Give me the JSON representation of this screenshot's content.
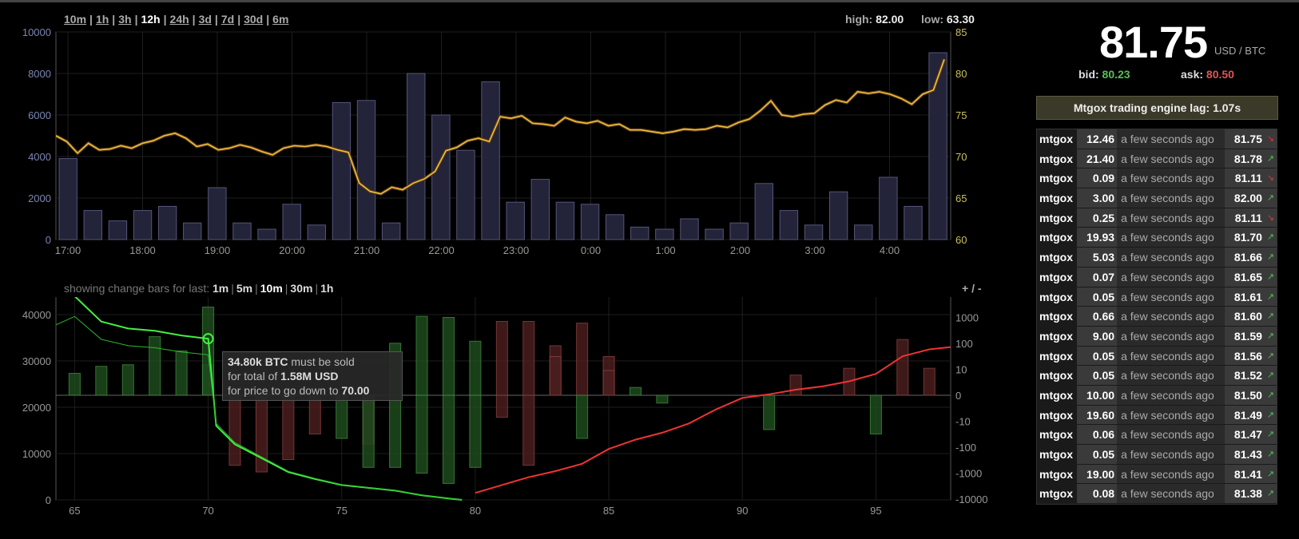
{
  "time_ranges": [
    {
      "label": "10m",
      "active": false
    },
    {
      "label": "1h",
      "active": false
    },
    {
      "label": "3h",
      "active": false
    },
    {
      "label": "12h",
      "active": true
    },
    {
      "label": "24h",
      "active": false
    },
    {
      "label": "3d",
      "active": false
    },
    {
      "label": "7d",
      "active": false
    },
    {
      "label": "30d",
      "active": false
    },
    {
      "label": "6m",
      "active": false
    }
  ],
  "high_label": "high:",
  "high_value": "82.00",
  "low_label": "low:",
  "low_value": "63.30",
  "change_bars": {
    "prefix": "showing change bars for last:",
    "options": [
      {
        "label": "1m",
        "active": false
      },
      {
        "label": "5m",
        "active": false
      },
      {
        "label": "10m",
        "active": true
      },
      {
        "label": "30m",
        "active": false
      },
      {
        "label": "1h",
        "active": false
      }
    ]
  },
  "zoom_label": "+ / -",
  "ticker": {
    "price": "81.75",
    "unit": "USD / BTC",
    "bid_label": "bid:",
    "bid": "80.23",
    "ask_label": "ask:",
    "ask": "80.50"
  },
  "lag_text": "Mtgox trading engine lag: 1.07s",
  "trades": [
    {
      "ex": "mtgox",
      "amount": "12.46",
      "time": "a few seconds ago",
      "price": "81.75",
      "dir": "down"
    },
    {
      "ex": "mtgox",
      "amount": "21.40",
      "time": "a few seconds ago",
      "price": "81.78",
      "dir": "up"
    },
    {
      "ex": "mtgox",
      "amount": "0.09",
      "time": "a few seconds ago",
      "price": "81.11",
      "dir": "down"
    },
    {
      "ex": "mtgox",
      "amount": "3.00",
      "time": "a few seconds ago",
      "price": "82.00",
      "dir": "up"
    },
    {
      "ex": "mtgox",
      "amount": "0.25",
      "time": "a few seconds ago",
      "price": "81.11",
      "dir": "down"
    },
    {
      "ex": "mtgox",
      "amount": "19.93",
      "time": "a few seconds ago",
      "price": "81.70",
      "dir": "up"
    },
    {
      "ex": "mtgox",
      "amount": "5.03",
      "time": "a few seconds ago",
      "price": "81.66",
      "dir": "up"
    },
    {
      "ex": "mtgox",
      "amount": "0.07",
      "time": "a few seconds ago",
      "price": "81.65",
      "dir": "up"
    },
    {
      "ex": "mtgox",
      "amount": "0.05",
      "time": "a few seconds ago",
      "price": "81.61",
      "dir": "up"
    },
    {
      "ex": "mtgox",
      "amount": "0.66",
      "time": "a few seconds ago",
      "price": "81.60",
      "dir": "up"
    },
    {
      "ex": "mtgox",
      "amount": "9.00",
      "time": "a few seconds ago",
      "price": "81.59",
      "dir": "up"
    },
    {
      "ex": "mtgox",
      "amount": "0.05",
      "time": "a few seconds ago",
      "price": "81.56",
      "dir": "up"
    },
    {
      "ex": "mtgox",
      "amount": "0.05",
      "time": "a few seconds ago",
      "price": "81.52",
      "dir": "up"
    },
    {
      "ex": "mtgox",
      "amount": "10.00",
      "time": "a few seconds ago",
      "price": "81.50",
      "dir": "up"
    },
    {
      "ex": "mtgox",
      "amount": "19.60",
      "time": "a few seconds ago",
      "price": "81.49",
      "dir": "up"
    },
    {
      "ex": "mtgox",
      "amount": "0.06",
      "time": "a few seconds ago",
      "price": "81.47",
      "dir": "up"
    },
    {
      "ex": "mtgox",
      "amount": "0.05",
      "time": "a few seconds ago",
      "price": "81.43",
      "dir": "up"
    },
    {
      "ex": "mtgox",
      "amount": "19.00",
      "time": "a few seconds ago",
      "price": "81.41",
      "dir": "up"
    },
    {
      "ex": "mtgox",
      "amount": "0.08",
      "time": "a few seconds ago",
      "price": "81.38",
      "dir": "up"
    }
  ],
  "tooltip": {
    "amount": "34.80k BTC",
    "l1": "must be sold",
    "l2": "for total of",
    "usd": "1.58M USD",
    "l3": "for price to go down to",
    "target": "70.00"
  },
  "chart_data": [
    {
      "type": "line",
      "x_ticks": [
        "17:00",
        "18:00",
        "19:00",
        "20:00",
        "21:00",
        "22:00",
        "23:00",
        "0:00",
        "1:00",
        "2:00",
        "3:00",
        "4:00"
      ],
      "y_left_ticks": [
        "0",
        "2000",
        "4000",
        "6000",
        "8000",
        "10000"
      ],
      "y_right_ticks": [
        "60",
        "65",
        "70",
        "75",
        "80",
        "85"
      ],
      "ylim_left": [
        0,
        10000
      ],
      "ylim_right": [
        60,
        85
      ],
      "volume_bars": [
        3900,
        1400,
        900,
        1400,
        1600,
        800,
        2500,
        800,
        500,
        1700,
        700,
        6600,
        6700,
        800,
        8000,
        6000,
        4300,
        7600,
        1800,
        2900,
        1800,
        1700,
        1200,
        600,
        500,
        1000,
        500,
        800,
        2700,
        1400,
        700,
        2300,
        700,
        3000,
        1600,
        9000
      ],
      "price_series": [
        72.5,
        71.8,
        70.4,
        71.6,
        70.8,
        70.9,
        71.3,
        71.0,
        71.6,
        71.9,
        72.5,
        72.8,
        72.2,
        71.2,
        71.5,
        70.8,
        71.0,
        71.4,
        71.1,
        70.6,
        70.2,
        71.0,
        71.3,
        71.2,
        71.4,
        71.2,
        70.8,
        70.5,
        66.8,
        65.8,
        65.5,
        66.3,
        66.0,
        66.8,
        67.3,
        68.2,
        70.7,
        71.1,
        71.9,
        72.2,
        71.8,
        74.8,
        74.6,
        74.9,
        74.0,
        73.9,
        73.7,
        74.7,
        74.2,
        74.0,
        74.3,
        73.7,
        73.9,
        73.2,
        73.2,
        73.0,
        72.8,
        73.0,
        73.3,
        73.2,
        73.3,
        73.7,
        73.5,
        74.1,
        74.5,
        75.5,
        76.7,
        75.0,
        74.8,
        75.1,
        75.2,
        76.2,
        76.8,
        76.5,
        77.8,
        77.6,
        77.8,
        77.5,
        77.0,
        76.3,
        77.5,
        78.0,
        81.7
      ]
    },
    {
      "type": "line",
      "x_ticks": [
        "65",
        "70",
        "75",
        "80",
        "85",
        "90",
        "95"
      ],
      "xlim": [
        64.3,
        97.8
      ],
      "y_left_ticks": [
        "0",
        "10000",
        "20000",
        "30000",
        "40000"
      ],
      "y_right_ticks": [
        "10000",
        "1000",
        "100",
        "10",
        "0",
        "-10",
        "-100",
        "-1000",
        "-10000"
      ],
      "ylim_left": [
        0,
        45000
      ],
      "bid_depth": {
        "x": [
          64.3,
          65,
          66,
          67,
          68,
          69,
          70,
          70.3,
          71,
          72,
          73,
          74,
          75,
          76,
          77,
          78,
          79,
          79.5
        ],
        "y": [
          45000,
          44000,
          38500,
          37000,
          36500,
          35500,
          34800,
          16000,
          12000,
          9000,
          6000,
          4500,
          3200,
          2600,
          2000,
          1000,
          300,
          0
        ]
      },
      "ask_depth": {
        "x": [
          80,
          81,
          82,
          83,
          84,
          85,
          86,
          87,
          88,
          89,
          90,
          91,
          92,
          93,
          94,
          95,
          96,
          97,
          97.8
        ],
        "y": [
          1500,
          3200,
          4900,
          6200,
          7800,
          11000,
          13000,
          14500,
          16500,
          19500,
          22000,
          22800,
          23800,
          24500,
          25600,
          27200,
          31000,
          32500,
          33000
        ]
      },
      "tooltip_point": {
        "x": 70,
        "y": 34800
      },
      "change_bars": [
        {
          "x": 65,
          "v": 6,
          "c": "green"
        },
        {
          "x": 66,
          "v": 12,
          "c": "green"
        },
        {
          "x": 67,
          "v": 14,
          "c": "green"
        },
        {
          "x": 68,
          "v": 180,
          "c": "green"
        },
        {
          "x": 69,
          "v": 50,
          "c": "green"
        },
        {
          "x": 70,
          "v": 14,
          "c": "green"
        },
        {
          "x": 70,
          "v": 2500,
          "c": "green"
        },
        {
          "x": 71,
          "v": -500,
          "c": "red"
        },
        {
          "x": 72,
          "v": -900,
          "c": "red"
        },
        {
          "x": 73,
          "v": -300,
          "c": "red"
        },
        {
          "x": 74,
          "v": -30,
          "c": "red"
        },
        {
          "x": 75,
          "v": -45,
          "c": "green"
        },
        {
          "x": 76,
          "v": -75,
          "c": "red"
        },
        {
          "x": 76,
          "v": -600,
          "c": "green"
        },
        {
          "x": 77,
          "v": 100,
          "c": "green"
        },
        {
          "x": 77,
          "v": -600,
          "c": "green"
        },
        {
          "x": 78,
          "v": -1000,
          "c": "green"
        },
        {
          "x": 78,
          "v": 1100,
          "c": "green"
        },
        {
          "x": 79,
          "v": 1000,
          "c": "green"
        },
        {
          "x": 79,
          "v": -2500,
          "c": "green"
        },
        {
          "x": 80,
          "v": 120,
          "c": "green"
        },
        {
          "x": 80,
          "v": -600,
          "c": "green"
        },
        {
          "x": 81,
          "v": -6,
          "c": "red"
        },
        {
          "x": 81,
          "v": 700,
          "c": "red"
        },
        {
          "x": 82,
          "v": -500,
          "c": "red"
        },
        {
          "x": 82,
          "v": 700,
          "c": "red"
        },
        {
          "x": 83,
          "v": 80,
          "c": "red"
        },
        {
          "x": 83,
          "v": 30,
          "c": "red"
        },
        {
          "x": 84,
          "v": 600,
          "c": "red"
        },
        {
          "x": 84,
          "v": -45,
          "c": "green"
        },
        {
          "x": 85,
          "v": 30,
          "c": "red"
        },
        {
          "x": 85,
          "v": 8,
          "c": "red"
        },
        {
          "x": 86,
          "v": 1,
          "c": "green"
        },
        {
          "x": 87,
          "v": -1,
          "c": "green"
        },
        {
          "x": 91,
          "v": -20,
          "c": "green"
        },
        {
          "x": 92,
          "v": 5,
          "c": "red"
        },
        {
          "x": 94,
          "v": 10,
          "c": "red"
        },
        {
          "x": 95,
          "v": -30,
          "c": "green"
        },
        {
          "x": 96,
          "v": 140,
          "c": "red"
        },
        {
          "x": 97,
          "v": 10,
          "c": "red"
        }
      ]
    }
  ]
}
